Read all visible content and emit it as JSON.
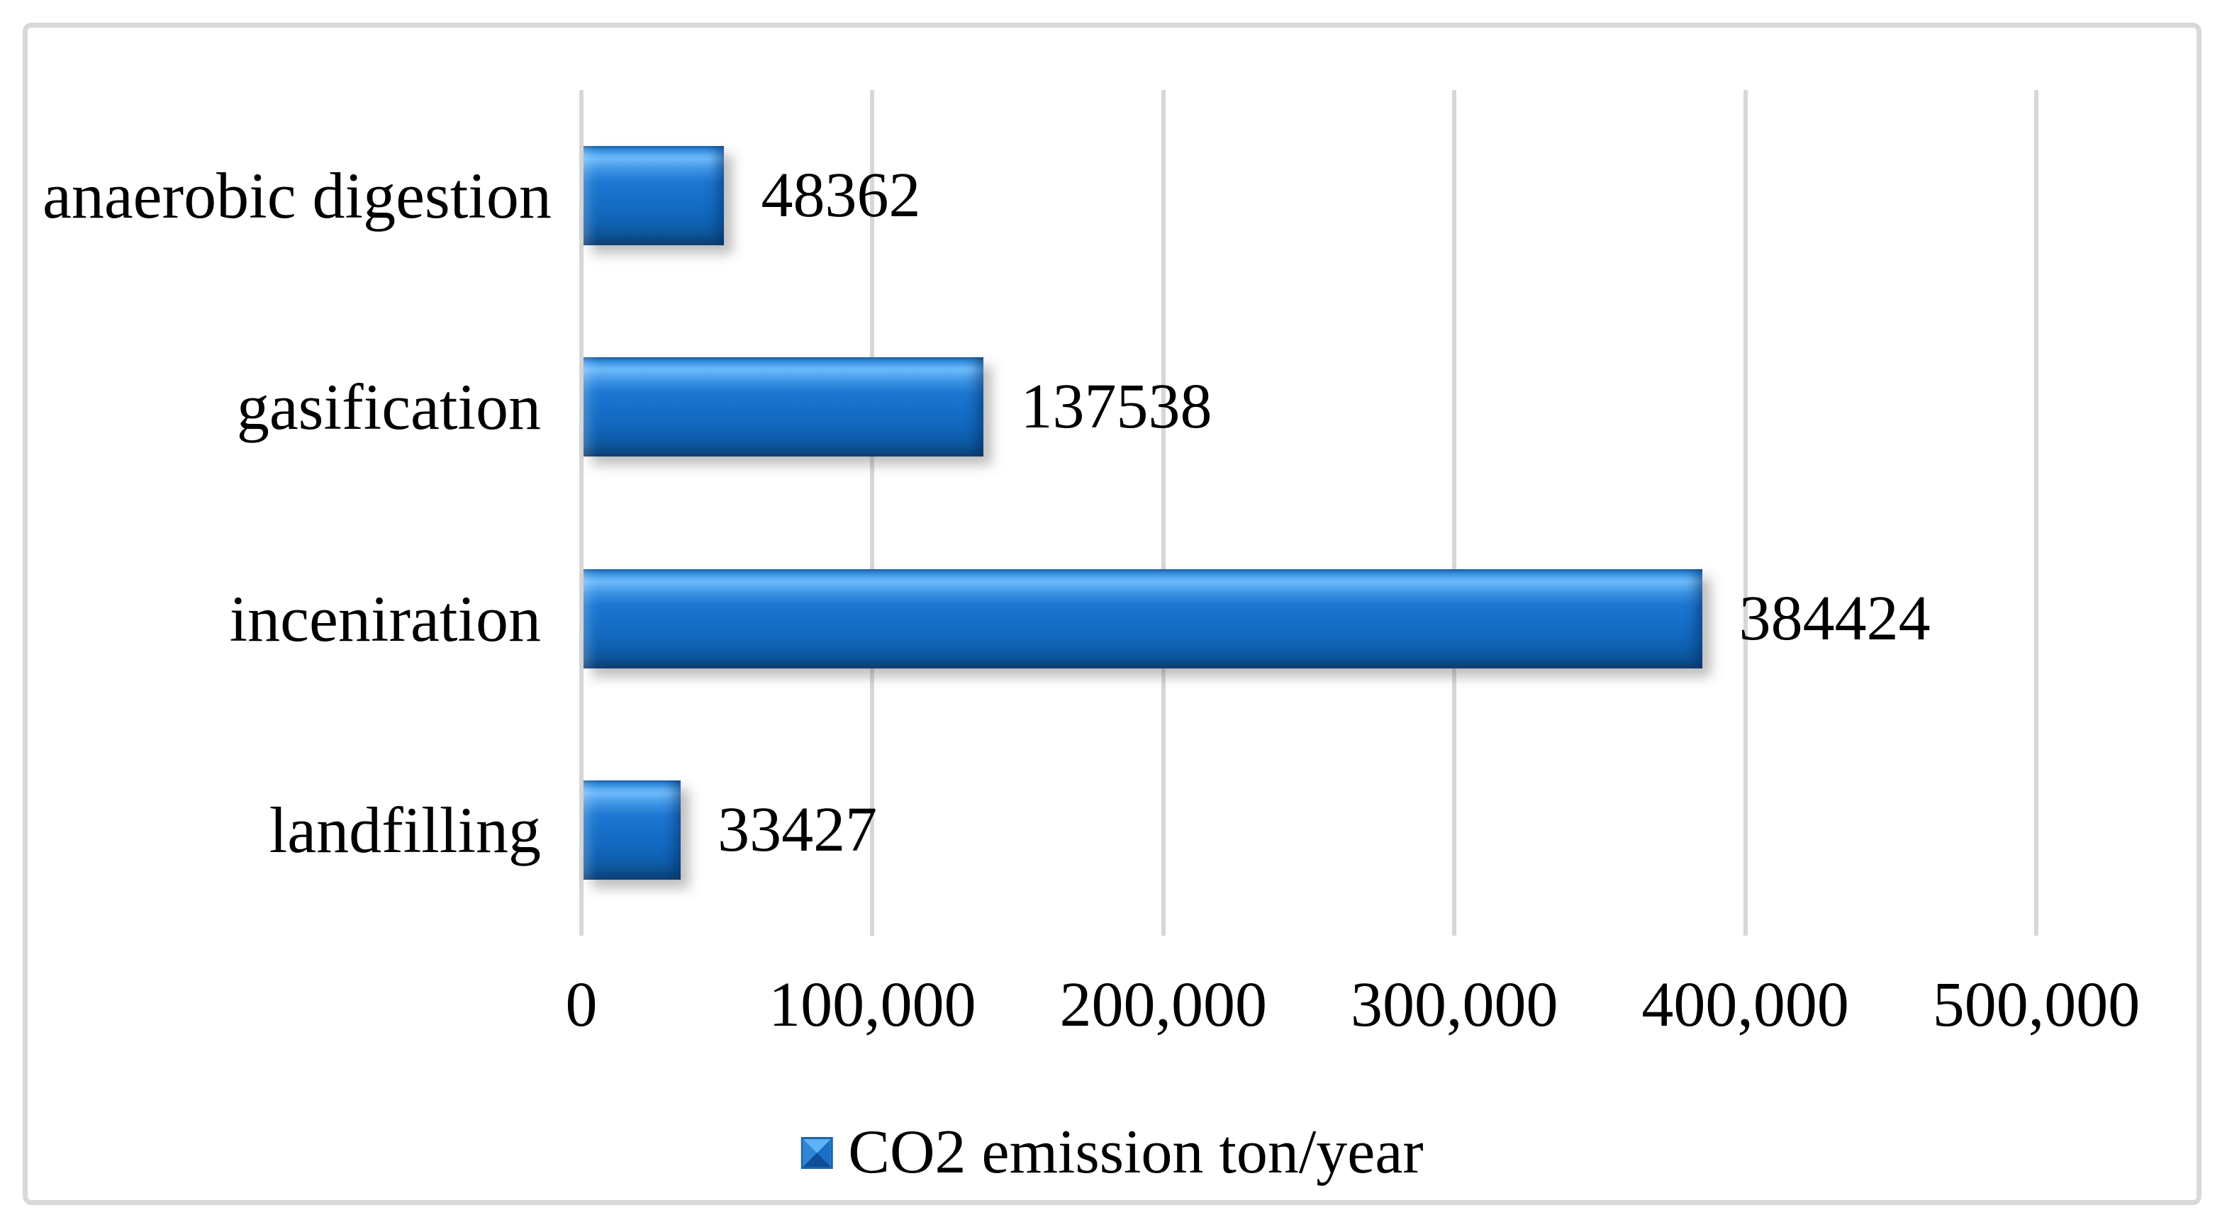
{
  "legend": {
    "label": "CO2 emission ton/year"
  },
  "colors": {
    "bar_main": "#1470C9",
    "bar_highlight": "#63B5F7",
    "bar_dark": "#093A6F",
    "gridline": "#D7D7D7",
    "frame_border": "#D9D9D9",
    "text": "#000000",
    "background": "#FFFFFF",
    "legend_marker_border": "#1D64AB"
  },
  "chart_data": {
    "type": "bar",
    "orientation": "horizontal",
    "title": "",
    "xlabel": "",
    "ylabel": "",
    "series_name": "CO2 emission ton/year",
    "categories": [
      "anaerobic digestion",
      "gasification",
      "inceniration",
      "landfilling"
    ],
    "values": [
      48362,
      137538,
      384424,
      33427
    ],
    "data_labels": [
      "48362",
      "137538",
      "384424",
      "33427"
    ],
    "xlim": [
      0,
      500000
    ],
    "x_ticks": [
      0,
      100000,
      200000,
      300000,
      400000,
      500000
    ],
    "x_tick_labels": [
      "0",
      "100,000",
      "200,000",
      "300,000",
      "400,000",
      "500,000"
    ],
    "grid": "vertical",
    "legend_position": "bottom-center"
  }
}
